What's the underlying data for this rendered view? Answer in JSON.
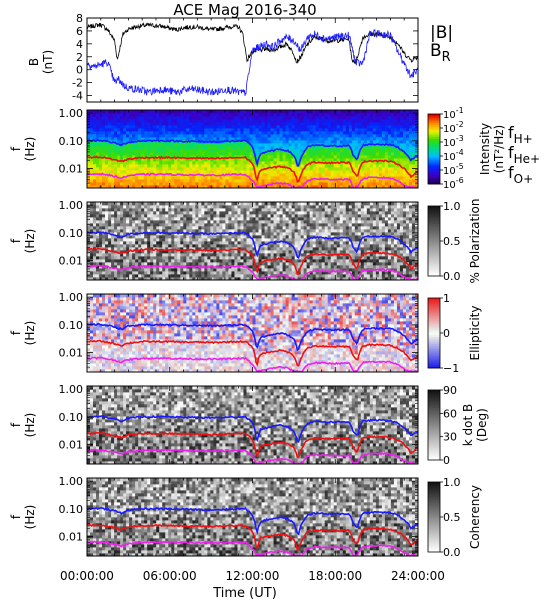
{
  "chart_data": {
    "title": "ACE Mag 2016-340",
    "type": "line",
    "xlabel": "Time (UT)",
    "x_ticks": [
      "00:00:00",
      "06:00:00",
      "12:00:00",
      "18:00:00",
      "24:00:00"
    ],
    "x_range_hours": [
      0,
      24
    ],
    "colors": {
      "B": "#000000",
      "BR": "#1a1aff",
      "fH": "#1a1aff",
      "fHe": "#ee1111",
      "fO": "#ee22ee"
    },
    "panels": [
      {
        "name": "field",
        "ylabel": "B",
        "yunits": "(nT)",
        "yrange": [
          -5,
          8
        ],
        "yticks": [
          "8",
          "6",
          "4",
          "2",
          "0",
          "-2",
          "-4"
        ],
        "legend": [
          "|B|",
          "B"
        ],
        "legend_sub": "R",
        "series": [
          {
            "name": "|B|",
            "x": [
              0,
              0.5,
              1,
              1.5,
              2,
              2.2,
              2.6,
              3,
              3.5,
              4,
              4.5,
              5,
              5.5,
              6,
              6.5,
              7,
              7.5,
              8,
              8.5,
              9,
              9.5,
              10,
              10.5,
              11,
              11.3,
              11.6,
              12,
              12.5,
              13,
              13.5,
              14,
              14.5,
              15,
              15.2,
              15.5,
              16,
              16.5,
              17,
              17.5,
              18,
              18.5,
              19,
              19.2,
              19.5,
              20,
              20.5,
              21,
              21.5,
              22,
              22.5,
              23,
              23.5,
              24
            ],
            "values": [
              6.5,
              6.8,
              7,
              6.2,
              4.5,
              1.5,
              5.5,
              6.3,
              6.6,
              6.8,
              6.9,
              6.8,
              6.7,
              6.4,
              6.2,
              6.5,
              6.6,
              6.6,
              6.4,
              6.2,
              6.3,
              6.5,
              6.7,
              6.6,
              5.5,
              1.5,
              2.8,
              3,
              3.2,
              3,
              3.5,
              4,
              2.5,
              1.2,
              2,
              4,
              5,
              4.8,
              4.5,
              4.5,
              4.6,
              4.8,
              1.5,
              1.2,
              5,
              5.5,
              5.5,
              5.3,
              5,
              4.2,
              2.5,
              1.5,
              2
            ]
          },
          {
            "name": "B_R",
            "x": [
              0,
              0.5,
              1,
              1.5,
              2,
              2.3,
              2.7,
              3,
              3.5,
              4,
              4.5,
              5,
              5.5,
              6,
              6.5,
              7,
              7.5,
              8,
              8.5,
              9,
              9.5,
              10,
              10.5,
              11,
              11.5,
              12,
              12.5,
              13,
              13.5,
              14,
              14.5,
              15,
              15.5,
              16,
              16.5,
              17,
              17.5,
              18,
              18.5,
              19,
              19.5,
              20,
              20.5,
              21,
              21.5,
              22,
              22.5,
              23,
              23.5,
              24
            ],
            "values": [
              1,
              0.5,
              0.8,
              1.2,
              -2,
              -1.5,
              -2.5,
              -2.8,
              -3,
              -3.2,
              -3.5,
              -3.2,
              -3,
              -3.3,
              -3.5,
              -3.2,
              -3,
              -3.1,
              -3.3,
              -3.5,
              -3.4,
              -3,
              -3.2,
              -3.5,
              -3.6,
              3,
              3.5,
              4,
              3.5,
              4.5,
              5,
              4.5,
              3,
              5,
              5.5,
              5,
              4.8,
              5,
              5.2,
              5.3,
              1,
              1,
              5.5,
              5.6,
              5.5,
              5.3,
              3,
              1,
              -1,
              0
            ]
          }
        ]
      },
      {
        "name": "power",
        "ylabel": "f",
        "yunits": "(Hz)",
        "yticks": [
          "1.00",
          "0.10",
          "0.01"
        ],
        "cbar_type": "rainbow",
        "cbar_ticks": [
          "10",
          "10",
          "10",
          "10",
          "10",
          "10"
        ],
        "cbar_tick_exps": [
          "-1",
          "-2",
          "-3",
          "-4",
          "-5",
          "-6"
        ],
        "cbar_label": "Intensity",
        "cbar_units": "(nT²/Hz)",
        "legend": [
          "f",
          "f",
          "f"
        ],
        "legend_subs": [
          "H+",
          "He+",
          "O+"
        ]
      },
      {
        "name": "polarization",
        "ylabel": "f",
        "yunits": "(Hz)",
        "yticks": [
          "1.00",
          "0.10",
          "0.01"
        ],
        "cbar_type": "gray",
        "cbar_ticks": [
          "1.0",
          "0.5",
          "0.0"
        ],
        "cbar_label": "% Polarization"
      },
      {
        "name": "ellipticity",
        "ylabel": "f",
        "yunits": "(Hz)",
        "yticks": [
          "1.00",
          "0.10",
          "0.01"
        ],
        "cbar_type": "redblue",
        "cbar_ticks": [
          "1",
          "0",
          "−1"
        ],
        "cbar_label": "Ellipticity"
      },
      {
        "name": "kdotb",
        "ylabel": "f",
        "yunits": "(Hz)",
        "yticks": [
          "1.00",
          "0.10",
          "0.01"
        ],
        "cbar_type": "gray",
        "cbar_ticks": [
          "90",
          "60",
          "30",
          "0"
        ],
        "cbar_label": "k dot B",
        "cbar_units": "(Deg)"
      },
      {
        "name": "coherency",
        "ylabel": "f",
        "yunits": "(Hz)",
        "yticks": [
          "1.00",
          "0.10",
          "0.01"
        ],
        "cbar_type": "gray",
        "cbar_ticks": [
          "1.0",
          "0.5",
          "0.0"
        ],
        "cbar_label": "Coherency"
      }
    ],
    "gyrofrequency_hz": {
      "x": [
        0,
        1,
        2,
        2.5,
        3,
        4,
        5,
        6,
        7,
        8,
        9,
        10,
        11,
        11.5,
        12,
        12.3,
        12.6,
        13,
        13.5,
        14,
        14.5,
        15,
        15.3,
        15.6,
        16,
        16.5,
        17,
        17.5,
        18,
        18.5,
        19,
        19.3,
        19.6,
        20,
        20.5,
        21,
        21.5,
        22,
        22.5,
        23,
        23.5,
        24
      ],
      "fH": [
        0.1,
        0.105,
        0.085,
        0.07,
        0.09,
        0.1,
        0.102,
        0.1,
        0.097,
        0.095,
        0.093,
        0.095,
        0.1,
        0.1,
        0.06,
        0.012,
        0.035,
        0.04,
        0.045,
        0.05,
        0.045,
        0.03,
        0.01,
        0.03,
        0.06,
        0.07,
        0.068,
        0.065,
        0.066,
        0.066,
        0.067,
        0.03,
        0.02,
        0.07,
        0.075,
        0.076,
        0.075,
        0.073,
        0.06,
        0.04,
        0.02,
        0.03
      ],
      "fHe": [
        0.025,
        0.026,
        0.021,
        0.018,
        0.022,
        0.025,
        0.025,
        0.025,
        0.024,
        0.024,
        0.023,
        0.024,
        0.025,
        0.025,
        0.015,
        0.003,
        0.009,
        0.01,
        0.011,
        0.012,
        0.011,
        0.0075,
        0.0028,
        0.0075,
        0.015,
        0.017,
        0.017,
        0.016,
        0.0165,
        0.0165,
        0.0168,
        0.0075,
        0.005,
        0.0175,
        0.019,
        0.019,
        0.019,
        0.018,
        0.015,
        0.01,
        0.005,
        0.0075
      ],
      "fO": [
        0.0062,
        0.0065,
        0.0053,
        0.0045,
        0.0056,
        0.0062,
        0.0063,
        0.0062,
        0.006,
        0.0059,
        0.0058,
        0.0059,
        0.0062,
        0.0062,
        0.0037,
        0.0021,
        0.0022,
        0.0025,
        0.0028,
        0.003,
        0.0028,
        0.0021,
        0.0021,
        0.0021,
        0.0037,
        0.0043,
        0.0042,
        0.0041,
        0.0041,
        0.0041,
        0.0042,
        0.0021,
        0.0021,
        0.0043,
        0.0047,
        0.0047,
        0.0047,
        0.0046,
        0.0037,
        0.0025,
        0.0021,
        0.0021
      ]
    }
  }
}
